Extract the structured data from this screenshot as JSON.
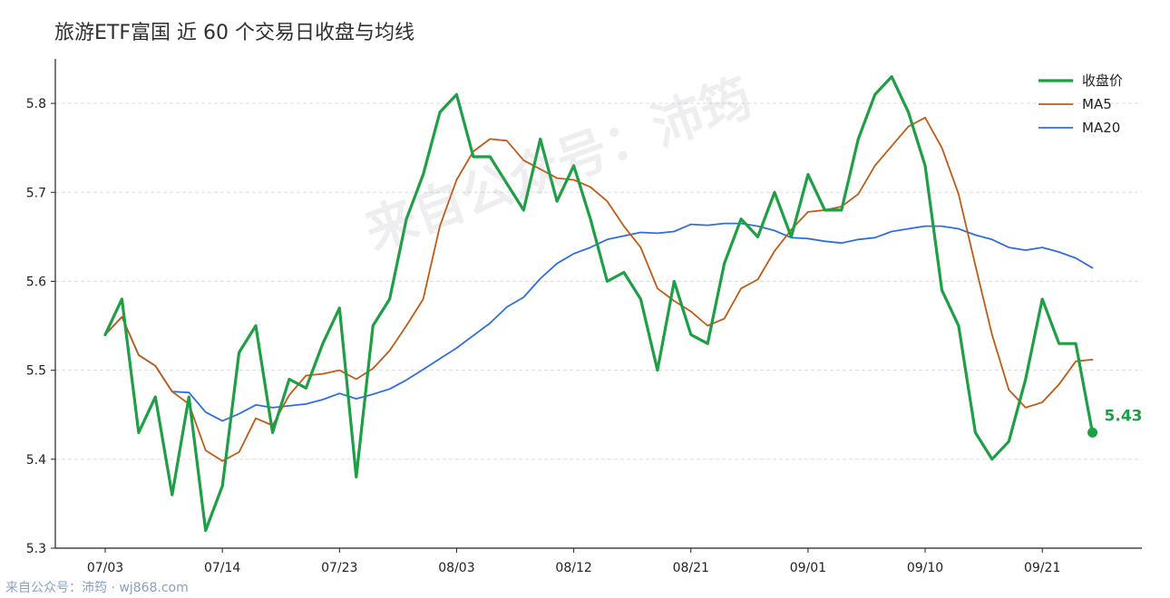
{
  "title": "旅游ETF富国 近 60 个交易日收盘与均线",
  "footer": "来自公众号：沛筠 · wj868.com",
  "watermark": "来自公众号：沛筠",
  "colors": {
    "close": "#1e9e45",
    "ma5": "#bf5b17",
    "ma20": "#2f6fdd",
    "grid": "#dddddd",
    "axis": "#222222"
  },
  "chart_data": {
    "type": "line",
    "title": "旅游ETF富国 近 60 个交易日收盘与均线",
    "xlabel": "",
    "ylabel": "",
    "ylim": [
      5.3,
      5.85
    ],
    "yticks": [
      5.3,
      5.4,
      5.5,
      5.6,
      5.7,
      5.8
    ],
    "ytick_labels": [
      "5.3",
      "5.4",
      "5.5",
      "5.6",
      "5.7",
      "5.8"
    ],
    "xticks": [
      {
        "index": 0,
        "label": "07/03"
      },
      {
        "index": 7,
        "label": "07/14"
      },
      {
        "index": 14,
        "label": "07/23"
      },
      {
        "index": 21,
        "label": "08/03"
      },
      {
        "index": 28,
        "label": "08/12"
      },
      {
        "index": 35,
        "label": "08/21"
      },
      {
        "index": 42,
        "label": "09/01"
      },
      {
        "index": 49,
        "label": "09/10"
      },
      {
        "index": 56,
        "label": "09/21"
      }
    ],
    "grid": "horizontal-dashed",
    "legend": "top-right",
    "series": [
      {
        "name": "收盘价",
        "key": "close",
        "values": [
          5.54,
          5.58,
          5.43,
          5.47,
          5.36,
          5.47,
          5.32,
          5.37,
          5.52,
          5.55,
          5.43,
          5.49,
          5.48,
          5.53,
          5.57,
          5.38,
          5.55,
          5.58,
          5.67,
          5.72,
          5.79,
          5.81,
          5.74,
          5.74,
          5.71,
          5.68,
          5.76,
          5.69,
          5.73,
          5.67,
          5.6,
          5.61,
          5.58,
          5.5,
          5.6,
          5.54,
          5.53,
          5.62,
          5.67,
          5.65,
          5.7,
          5.65,
          5.72,
          5.68,
          5.68,
          5.76,
          5.81,
          5.83,
          5.79,
          5.73,
          5.59,
          5.55,
          5.43,
          5.4,
          5.42,
          5.49,
          5.58,
          5.53,
          5.53,
          5.43
        ]
      },
      {
        "name": "MA5",
        "key": "ma5",
        "values": [
          5.54,
          5.56,
          5.517,
          5.505,
          5.476,
          5.462,
          5.41,
          5.398,
          5.408,
          5.446,
          5.438,
          5.472,
          5.494,
          5.496,
          5.5,
          5.49,
          5.502,
          5.522,
          5.55,
          5.58,
          5.662,
          5.714,
          5.746,
          5.76,
          5.758,
          5.736,
          5.726,
          5.716,
          5.714,
          5.706,
          5.69,
          5.662,
          5.638,
          5.592,
          5.578,
          5.566,
          5.55,
          5.558,
          5.592,
          5.602,
          5.634,
          5.658,
          5.678,
          5.68,
          5.684,
          5.698,
          5.73,
          5.752,
          5.774,
          5.784,
          5.75,
          5.698,
          5.618,
          5.54,
          5.478,
          5.458,
          5.464,
          5.484,
          5.51,
          5.512
        ]
      },
      {
        "name": "MA20",
        "key": "ma20",
        "values": [
          5.54,
          5.56,
          5.517,
          5.505,
          5.476,
          5.475,
          5.453,
          5.443,
          5.451,
          5.461,
          5.458,
          5.46,
          5.462,
          5.467,
          5.474,
          5.468,
          5.473,
          5.479,
          5.489,
          5.501,
          5.513,
          5.525,
          5.539,
          5.553,
          5.571,
          5.582,
          5.603,
          5.62,
          5.631,
          5.638,
          5.647,
          5.651,
          5.655,
          5.654,
          5.656,
          5.664,
          5.663,
          5.665,
          5.665,
          5.662,
          5.657,
          5.649,
          5.648,
          5.645,
          5.643,
          5.647,
          5.649,
          5.656,
          5.659,
          5.662,
          5.662,
          5.659,
          5.652,
          5.647,
          5.638,
          5.635,
          5.638,
          5.633,
          5.626,
          5.615
        ]
      }
    ],
    "annotations": [
      {
        "series": "close",
        "index": 59,
        "label": "5.43"
      }
    ]
  }
}
